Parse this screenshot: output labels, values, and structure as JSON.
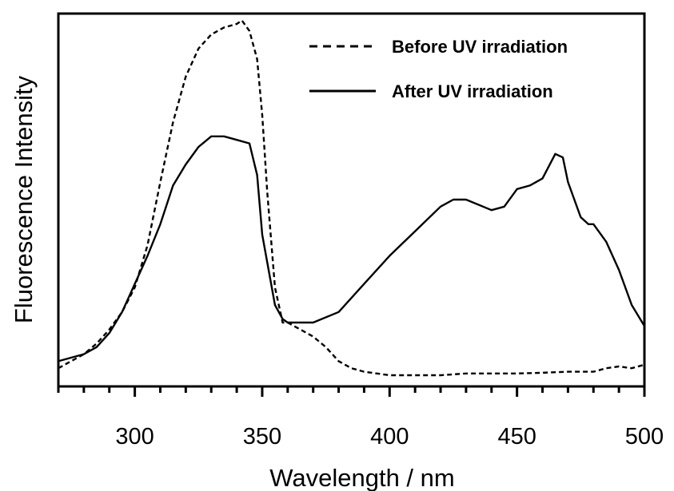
{
  "chart_data": {
    "type": "line",
    "title": "",
    "xlabel": "Wavelength / nm",
    "ylabel": "Fluorescence Intensity",
    "xlim": [
      270,
      500
    ],
    "ylim": [
      0,
      1
    ],
    "x_ticks": [
      300,
      350,
      400,
      450,
      500
    ],
    "x_minor_step": 10,
    "y_ticks": [],
    "grid": false,
    "legend": "top-right",
    "series": [
      {
        "name": "Before UV irradiation",
        "style": "dashed",
        "color": "#000000",
        "x": [
          270,
          275,
          280,
          285,
          290,
          295,
          300,
          305,
          310,
          315,
          320,
          325,
          330,
          335,
          340,
          342,
          345,
          348,
          350,
          352,
          355,
          358,
          360,
          365,
          370,
          375,
          380,
          385,
          390,
          400,
          410,
          420,
          430,
          440,
          450,
          460,
          470,
          480,
          485,
          490,
          495,
          500
        ],
        "y": [
          0.02,
          0.04,
          0.06,
          0.09,
          0.13,
          0.18,
          0.25,
          0.37,
          0.55,
          0.72,
          0.85,
          0.93,
          0.97,
          0.99,
          1.0,
          1.01,
          0.98,
          0.9,
          0.74,
          0.52,
          0.25,
          0.15,
          0.15,
          0.13,
          0.11,
          0.08,
          0.04,
          0.02,
          0.01,
          0.0,
          0.0,
          0.0,
          0.005,
          0.005,
          0.005,
          0.007,
          0.01,
          0.01,
          0.02,
          0.025,
          0.02,
          0.03
        ]
      },
      {
        "name": "After UV irradiation",
        "style": "solid",
        "color": "#000000",
        "x": [
          270,
          275,
          280,
          285,
          290,
          295,
          300,
          305,
          310,
          315,
          320,
          325,
          330,
          335,
          340,
          345,
          348,
          350,
          355,
          358,
          360,
          365,
          370,
          380,
          390,
          400,
          410,
          420,
          425,
          430,
          440,
          445,
          450,
          455,
          460,
          465,
          468,
          470,
          475,
          478,
          480,
          485,
          490,
          495,
          500
        ],
        "y": [
          0.04,
          0.05,
          0.06,
          0.08,
          0.12,
          0.18,
          0.26,
          0.34,
          0.43,
          0.54,
          0.6,
          0.65,
          0.68,
          0.68,
          0.67,
          0.66,
          0.57,
          0.4,
          0.2,
          0.16,
          0.15,
          0.15,
          0.15,
          0.18,
          0.26,
          0.34,
          0.41,
          0.48,
          0.5,
          0.5,
          0.47,
          0.48,
          0.53,
          0.54,
          0.56,
          0.63,
          0.62,
          0.55,
          0.45,
          0.43,
          0.43,
          0.38,
          0.3,
          0.2,
          0.14
        ]
      }
    ]
  }
}
